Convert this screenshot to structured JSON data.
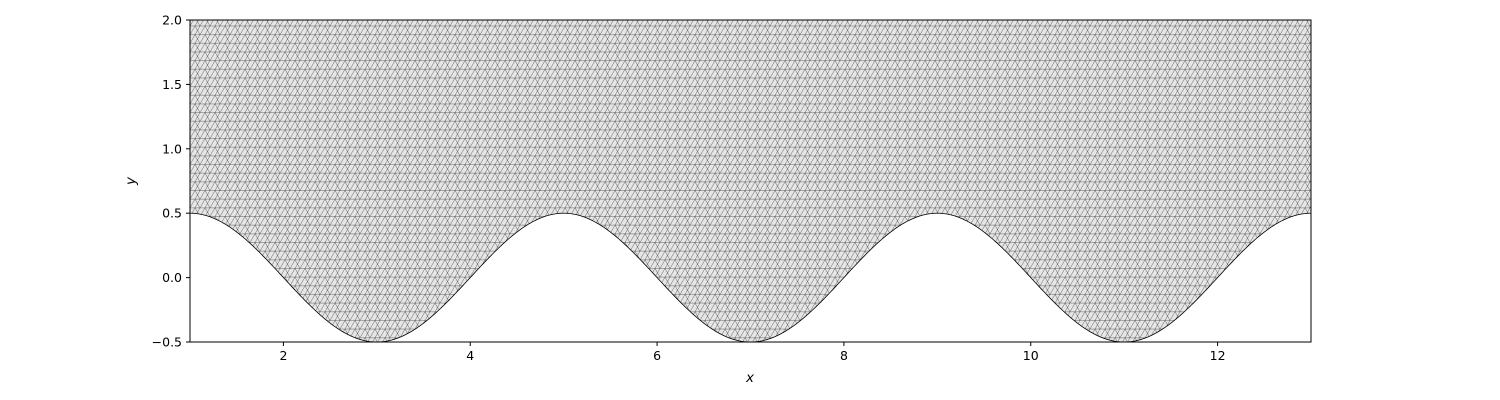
{
  "chart_data": {
    "type": "area",
    "title": "",
    "xlabel": "x",
    "ylabel": "y",
    "xlim": [
      1,
      13
    ],
    "ylim": [
      -0.5,
      2.0
    ],
    "xticks": [
      2,
      4,
      6,
      8,
      10,
      12
    ],
    "yticks": [
      -0.5,
      0.0,
      0.5,
      1.0,
      1.5,
      2.0
    ],
    "xtick_labels": [
      "2",
      "4",
      "6",
      "8",
      "10",
      "12"
    ],
    "ytick_labels": [
      "−0.5",
      "0.0",
      "0.5",
      "1.0",
      "1.5",
      "2.0"
    ],
    "grid": false,
    "legend": "none",
    "series": [
      {
        "kind": "triangulated-mesh-region",
        "top_boundary": 2.0,
        "bottom_boundary": {
          "function": "y = 0.5*cos(pi*(x-1)/2)",
          "x": [
            1,
            3,
            5,
            7,
            9,
            11,
            13
          ],
          "y": [
            0.5,
            -0.5,
            0.5,
            -0.5,
            0.5,
            -0.5,
            0.5
          ]
        },
        "fill_color": "#e6e6e6",
        "edge_color": "#000000"
      }
    ]
  }
}
